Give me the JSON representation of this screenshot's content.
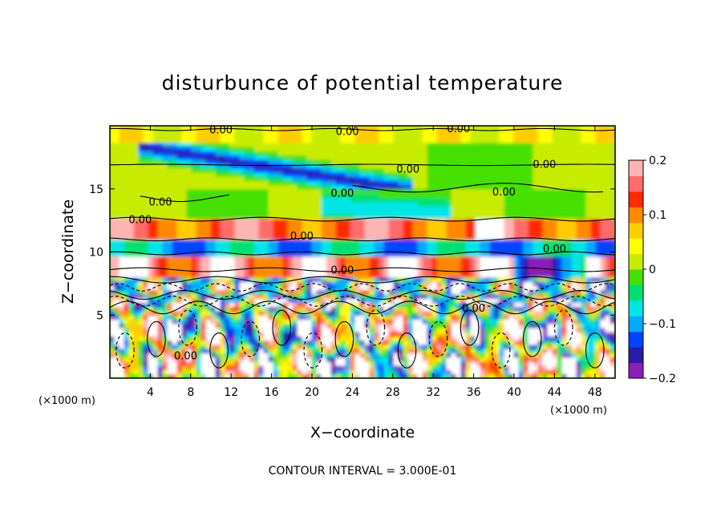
{
  "chart_data": {
    "type": "heatmap",
    "title": "disturbunce of potential temperature",
    "xlabel": "X−coordinate",
    "ylabel": "Z−coordinate",
    "x_unit": "(×1000 m)",
    "y_unit": "(×1000 m)",
    "xlim": [
      0,
      50
    ],
    "ylim": [
      0,
      20
    ],
    "x_ticks": [
      4,
      8,
      12,
      16,
      20,
      24,
      28,
      32,
      36,
      40,
      44,
      48
    ],
    "y_ticks": [
      5,
      10,
      15
    ],
    "colorbar": {
      "ticks": [
        -0.2,
        -0.1,
        0,
        0.1,
        0.2
      ],
      "tick_labels": [
        "−0.2",
        "−0.1",
        "0",
        "0.1",
        "0.2"
      ],
      "range": [
        -0.2,
        0.2
      ],
      "colors": [
        "#8a1fb8",
        "#2a1aa8",
        "#0044ff",
        "#00aaff",
        "#00e6e6",
        "#00e070",
        "#44e000",
        "#c8ec00",
        "#ffff00",
        "#ffcc00",
        "#ff8800",
        "#ff2a00",
        "#ff6a6a",
        "#ffb4b4"
      ]
    },
    "contour_labels": [
      {
        "text": "0.00",
        "x": 11.0,
        "z": 19.7
      },
      {
        "text": "0.00",
        "x": 23.5,
        "z": 19.6
      },
      {
        "text": "0.00",
        "x": 34.5,
        "z": 19.8
      },
      {
        "text": "0.00",
        "x": 29.5,
        "z": 16.6
      },
      {
        "text": "0.00",
        "x": 43.0,
        "z": 17.0
      },
      {
        "text": "0.00",
        "x": 39.0,
        "z": 14.8
      },
      {
        "text": "0.00",
        "x": 5.0,
        "z": 14.0
      },
      {
        "text": "0.00",
        "x": 23.0,
        "z": 14.7
      },
      {
        "text": "0.00",
        "x": 3.0,
        "z": 12.6
      },
      {
        "text": "0.00",
        "x": 19.0,
        "z": 11.3
      },
      {
        "text": "0.00",
        "x": 44.0,
        "z": 10.3
      },
      {
        "text": "0.00",
        "x": 23.0,
        "z": 8.6
      },
      {
        "text": "0.00",
        "x": 36.0,
        "z": 5.6
      },
      {
        "text": "0.00",
        "x": 7.5,
        "z": 1.8
      }
    ]
  },
  "footer": {
    "contour_interval": "CONTOUR INTERVAL = 3.000E-01"
  }
}
